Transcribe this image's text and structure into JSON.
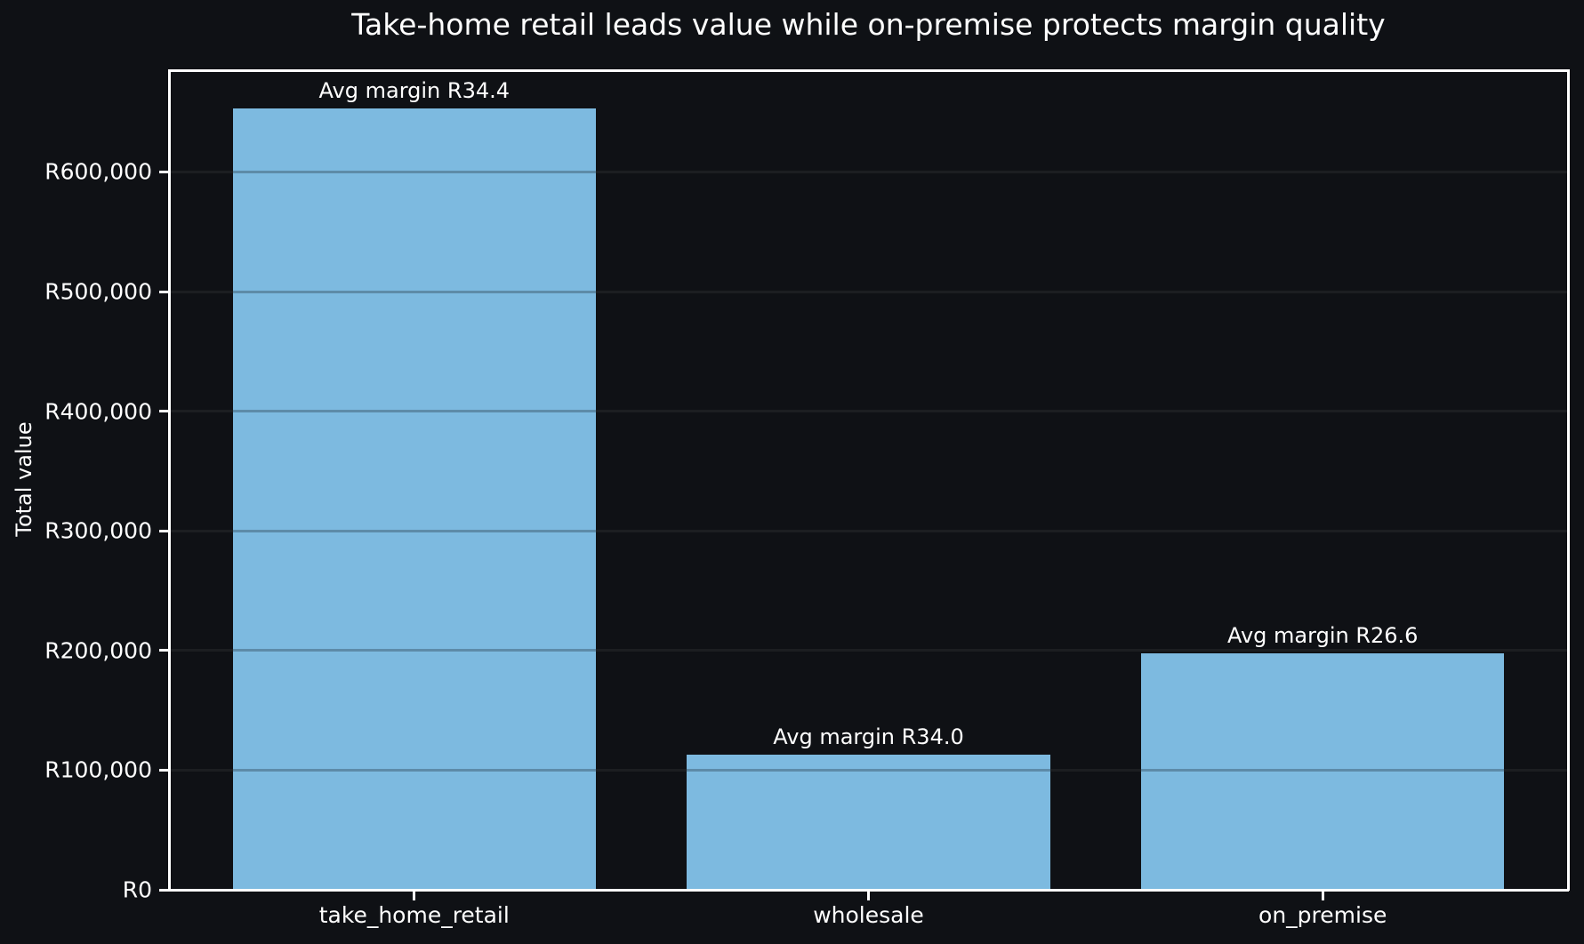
{
  "title": "Take-home retail leads value while on-premise protects margin quality",
  "chart_data": {
    "type": "bar",
    "title": "Take-home retail leads value while on-premise protects margin quality",
    "xlabel": "",
    "ylabel": "Total value",
    "categories": [
      "take_home_retail",
      "wholesale",
      "on_premise"
    ],
    "values": [
      653000,
      113000,
      198000
    ],
    "bar_labels": [
      "Avg margin R34.4",
      "Avg margin R34.0",
      "Avg margin R26.6"
    ],
    "ylim": [
      0,
      685000
    ],
    "yticks": [
      {
        "value": 0,
        "label": "R0"
      },
      {
        "value": 100000,
        "label": "R100,000"
      },
      {
        "value": 200000,
        "label": "R200,000"
      },
      {
        "value": 300000,
        "label": "R300,000"
      },
      {
        "value": 400000,
        "label": "R400,000"
      },
      {
        "value": 500000,
        "label": "R500,000"
      },
      {
        "value": 600000,
        "label": "R600,000"
      }
    ],
    "grid": true,
    "legend_position": "none",
    "colors": {
      "bar": "#7dbae0",
      "background": "#0f1115",
      "text": "#ffffff",
      "spine": "#ffffff",
      "grid_on_background": "rgba(255,255,255,0.055)",
      "grid_on_bar": "rgba(0,0,0,0.25)"
    }
  }
}
